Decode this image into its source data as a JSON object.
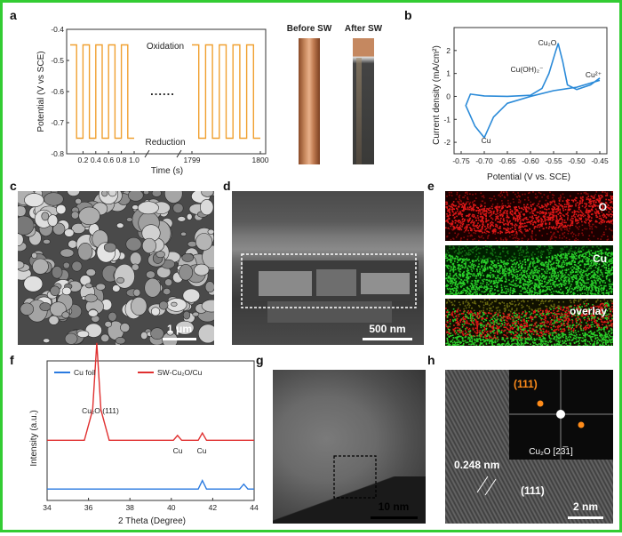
{
  "colors": {
    "frame": "#33cc33",
    "orange": "#f0a030",
    "blue": "#2a8ad8",
    "red": "#e03030",
    "bluefoil": "#2a7ae0",
    "eds_o": "#cc1010",
    "eds_cu": "#20c020"
  },
  "panels": {
    "a": "a",
    "b": "b",
    "c": "c",
    "d": "d",
    "e": "e",
    "f": "f",
    "g": "g",
    "h": "h"
  },
  "panel_a": {
    "ylabel": "Potential (V vs SCE)",
    "xlabel": "Time (s)",
    "yticks": [
      "-0.4",
      "-0.5",
      "-0.6",
      "-0.7",
      "-0.8"
    ],
    "xticks_left": [
      "0.2",
      "0.4",
      "0.6",
      "0.8",
      "1.0"
    ],
    "xticks_right": [
      "1799",
      "1800"
    ],
    "oxidation": "Oxidation",
    "reduction": "Reduction",
    "dots": "......",
    "before": "Before SW",
    "after": "After SW"
  },
  "panel_b": {
    "ylabel": "Current density (mA/cm²)",
    "xlabel": "Potential (V vs. SCE)",
    "yticks": [
      "2",
      "1",
      "0",
      "-1",
      "-2"
    ],
    "xticks": [
      "-0.75",
      "-0.70",
      "-0.65",
      "-0.60",
      "-0.55",
      "-0.50",
      "-0.45"
    ],
    "labels": {
      "cu2o": "Cu₂O",
      "cuoh2": "Cu(OH)₂⁻",
      "cu2": "Cu²⁺",
      "cu": "Cu"
    }
  },
  "panel_c": {
    "scalebar": "1 μm"
  },
  "panel_d": {
    "scalebar": "500 nm"
  },
  "panel_e": {
    "o": "O",
    "cu": "Cu",
    "overlay": "overlay"
  },
  "panel_f": {
    "legend": [
      "Cu foil",
      "SW-Cu₂O/Cu"
    ],
    "ylabel": "Intensity (a.u.)",
    "xlabel": "2 Theta (Degree)",
    "xticks": [
      "34",
      "36",
      "38",
      "40",
      "42",
      "44"
    ],
    "peak1": "Cu₂O (111)",
    "peak2": "Cu",
    "peak3": "Cu"
  },
  "panel_g": {
    "scalebar": "10 nm"
  },
  "panel_h": {
    "scalebar": "2 nm",
    "d_spacing": "0.248 nm",
    "plane": "(111)",
    "inset_plane": "(111)",
    "inset_zone": "Cu₂O [23̅1]"
  },
  "chart_data": [
    {
      "type": "line",
      "title": "",
      "xlabel": "Time (s)",
      "ylabel": "Potential (V vs SCE)",
      "ylim": [
        -0.8,
        -0.4
      ],
      "series": [
        {
          "name": "",
          "x": [
            0.0,
            0.1,
            0.1,
            0.2,
            0.2,
            0.3,
            0.3,
            0.4,
            0.4,
            0.5,
            0.5,
            0.6,
            0.6,
            0.7,
            0.7,
            0.8,
            0.8,
            0.9,
            0.9,
            1.0
          ],
          "values": [
            -0.45,
            -0.45,
            -0.75,
            -0.75,
            -0.45,
            -0.45,
            -0.75,
            -0.75,
            -0.45,
            -0.45,
            -0.75,
            -0.75,
            -0.45,
            -0.45,
            -0.75,
            -0.75,
            -0.45,
            -0.45,
            -0.75,
            -0.75
          ]
        }
      ]
    },
    {
      "type": "line",
      "title": "",
      "xlabel": "Potential (V vs. SCE)",
      "ylabel": "Current density (mA/cm²)",
      "xlim": [
        -0.75,
        -0.45
      ],
      "ylim": [
        -2.5,
        3
      ],
      "series": [
        {
          "name": "",
          "x": [
            -0.45,
            -0.5,
            -0.55,
            -0.6,
            -0.65,
            -0.68,
            -0.7,
            -0.72,
            -0.74,
            -0.73,
            -0.7,
            -0.65,
            -0.6,
            -0.575,
            -0.56,
            -0.545,
            -0.54,
            -0.53,
            -0.52,
            -0.5,
            -0.47,
            -0.45
          ],
          "values": [
            0.7,
            0.4,
            0.25,
            0.0,
            -0.3,
            -0.9,
            -1.8,
            -1.3,
            -0.4,
            0.1,
            0.02,
            0.0,
            0.05,
            0.35,
            1.0,
            2.0,
            2.3,
            1.5,
            0.5,
            0.3,
            0.5,
            0.8
          ]
        }
      ]
    },
    {
      "type": "line",
      "title": "",
      "xlabel": "2 Theta (Degree)",
      "ylabel": "Intensity (a.u.)",
      "xlim": [
        34,
        44
      ],
      "series": [
        {
          "name": "Cu foil",
          "x": [
            34,
            36,
            38,
            40,
            41.3,
            41.5,
            41.7,
            43.3,
            43.5,
            43.7,
            44
          ],
          "values": [
            0.05,
            0.05,
            0.05,
            0.05,
            0.05,
            0.12,
            0.05,
            0.05,
            0.09,
            0.05,
            0.05
          ]
        },
        {
          "name": "SW-Cu₂O/Cu",
          "x": [
            34,
            35.8,
            36.2,
            36.4,
            36.6,
            37.0,
            38,
            40.1,
            40.3,
            40.5,
            41.3,
            41.5,
            41.7,
            44
          ],
          "values": [
            0.45,
            0.45,
            0.7,
            1.25,
            0.7,
            0.45,
            0.45,
            0.45,
            0.49,
            0.45,
            0.45,
            0.51,
            0.45,
            0.45
          ]
        }
      ]
    }
  ]
}
